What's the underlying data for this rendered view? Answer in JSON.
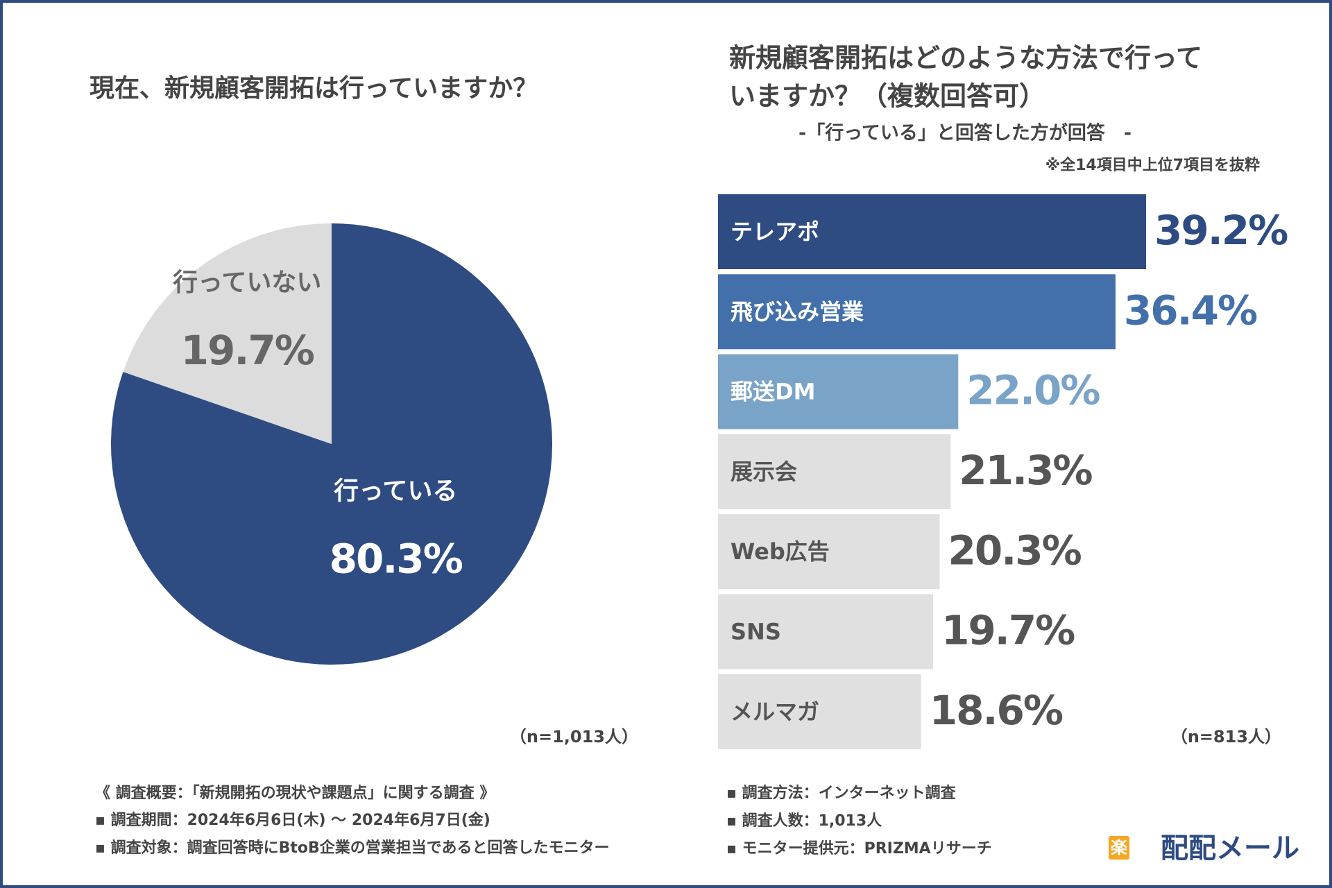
{
  "chart_data": [
    {
      "type": "pie",
      "title": "現在、新規顧客開拓は行っていますか？",
      "categories": [
        "行っている",
        "行っていない"
      ],
      "values": [
        80.3,
        19.7
      ],
      "value_labels": [
        "80.3%",
        "19.7%"
      ],
      "colors": [
        "#2e4b82",
        "#dcdcdc"
      ],
      "note": "（n=1,013人）"
    },
    {
      "type": "hbar",
      "title": [
        "新規顧客開拓はどのような方法で行って",
        "いますか？（複数回答可）"
      ],
      "subtitle": "-「行っている」と回答した方が回答　-",
      "annotation": "※全14項目中上位7項目を抜粋",
      "categories": [
        "テレアポ",
        "飛び込み営業",
        "郵送DM",
        "展示会",
        "Web広告",
        "SNS",
        "メルマガ"
      ],
      "values": [
        39.2,
        36.4,
        22.0,
        21.3,
        20.3,
        19.7,
        18.6
      ],
      "value_labels": [
        "39.2%",
        "36.4%",
        "22.0%",
        "21.3%",
        "20.3%",
        "19.7%",
        "18.6%"
      ],
      "colors": [
        "#2e4b82",
        "#4370ab",
        "#7aa3c8",
        "#e0e0e0",
        "#e0e0e0",
        "#e0e0e0",
        "#e0e0e0"
      ],
      "note": "（n=813人）"
    }
  ],
  "footer": {
    "heading": "《 調査概要：「新規開拓の現状や課題点」に関する調査 》",
    "left": [
      "▪ 調査期間：2024年6月6日(木) 〜 2024年6月7日(金)",
      "▪ 調査対象：調査回答時にBtoB企業の営業担当であると回答したモニター"
    ],
    "right": [
      "▪ 調査方法：インターネット調査",
      "▪ 調査人数：1,013人",
      "▪ モニター提供元：PRIZMAリサーチ"
    ],
    "logo_mark": "楽",
    "logo": "配配メール"
  }
}
